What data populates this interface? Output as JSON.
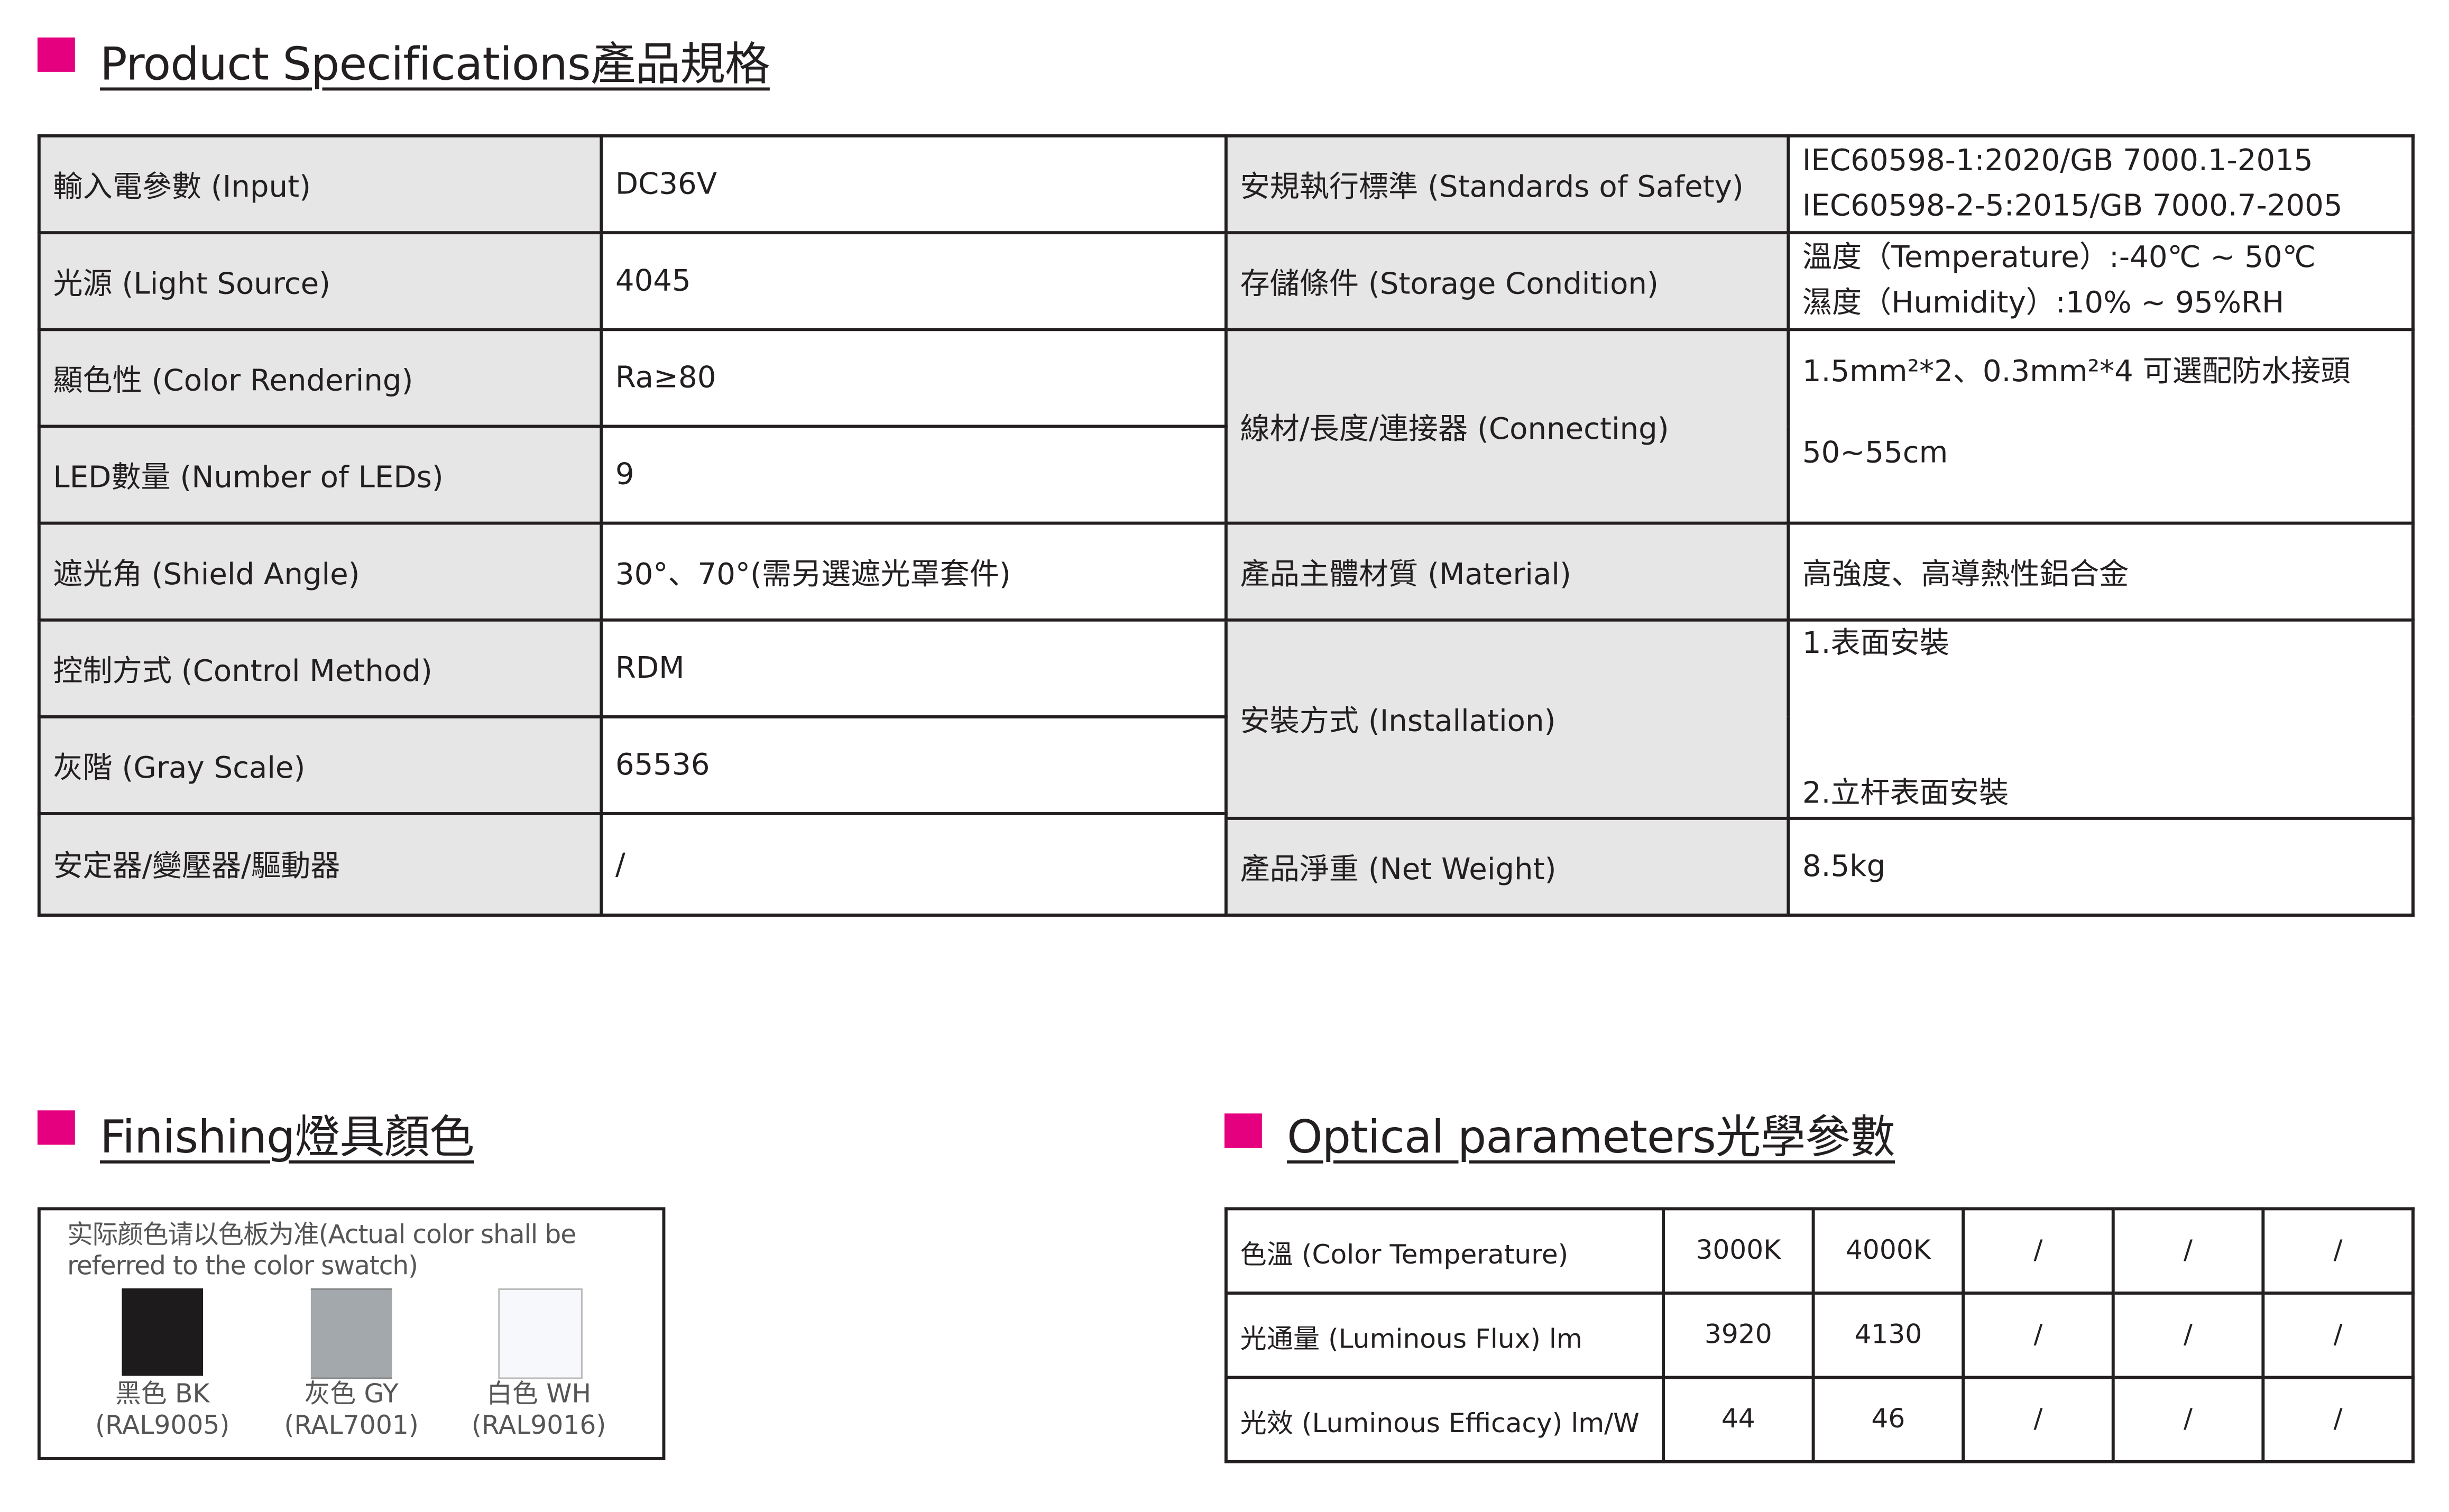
{
  "colors": {
    "accent": "#e4007f",
    "label_bg": "#e6e6e6",
    "border": "#231f20"
  },
  "headings": {
    "specs": "Product Specifications產品規格",
    "finishing": "Finishing燈具顏色",
    "optical": "Optical parameters光學參數"
  },
  "specs": {
    "input": {
      "label": "輸入電參數 (Input)",
      "value": "DC36V"
    },
    "light_source": {
      "label": "光源 (Light Source)",
      "value": "4045"
    },
    "color_rendering": {
      "label": "顯色性 (Color Rendering)",
      "value": "Ra≥80"
    },
    "led_count": {
      "label": "LED數量 (Number of LEDs)",
      "value": "9"
    },
    "shield_angle": {
      "label": "遮光角 (Shield Angle)",
      "value": "30°、70°(需另選遮光罩套件)"
    },
    "control": {
      "label": "控制方式 (Control Method)",
      "value": "RDM"
    },
    "gray_scale": {
      "label": "灰階 (Gray Scale)",
      "value": "65536"
    },
    "ballast": {
      "label": "安定器/變壓器/驅動器",
      "value": "/"
    },
    "safety": {
      "label": "安規執行標準 (Standards of Safety)",
      "value_1": "IEC60598-1:2020/GB 7000.1-2015",
      "value_2": "IEC60598-2-5:2015/GB 7000.7-2005"
    },
    "storage": {
      "label": "存儲條件 (Storage Condition)",
      "value_1": "溫度（Temperature）:-40℃ ~ 50℃",
      "value_2": "濕度（Humidity）:10% ~ 95%RH"
    },
    "connecting": {
      "label": "線材/長度/連接器 (Connecting)",
      "value_1": "1.5mm²*2、0.3mm²*4 可選配防水接頭",
      "value_2": "50~55cm"
    },
    "material": {
      "label": "產品主體材質 (Material)",
      "value": "高強度、高導熱性鋁合金"
    },
    "installation": {
      "label": "安裝方式 (Installation)",
      "value_1": "1.表面安裝",
      "value_2": "2.立杆表面安裝"
    },
    "net_weight": {
      "label": "產品淨重 (Net Weight)",
      "value": "8.5kg"
    }
  },
  "finishing": {
    "note": "实际颜色请以色板为准(Actual color shall be referred to the color swatch)",
    "swatches": [
      {
        "name": "黑色 BK",
        "code": "(RAL9005)",
        "color": "#1e1b1c"
      },
      {
        "name": "灰色 GY",
        "code": "(RAL7001)",
        "color": "#a3a8ad"
      },
      {
        "name": "白色 WH",
        "code": "(RAL9016)",
        "color": "#f7f8fc"
      }
    ]
  },
  "optical": {
    "rows": [
      {
        "label": "色溫 (Color Temperature)",
        "values": [
          "3000K",
          "4000K",
          "/",
          "/",
          "/"
        ]
      },
      {
        "label": "光通量 (Luminous Flux) lm",
        "values": [
          "3920",
          "4130",
          "/",
          "/",
          "/"
        ]
      },
      {
        "label": "光效 (Luminous Efficacy) lm/W",
        "values": [
          "44",
          "46",
          "/",
          "/",
          "/"
        ]
      }
    ]
  }
}
